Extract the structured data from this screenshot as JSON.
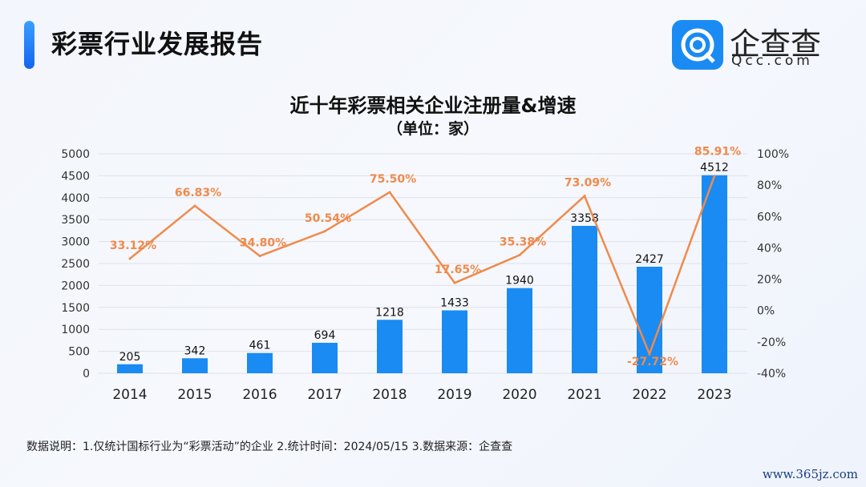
{
  "header": {
    "title": "彩票行业发展报告",
    "logo_text": "企查查",
    "logo_sub": "Qcc.com"
  },
  "footer": {
    "note": "数据说明：1.仅统计国标行业为“彩票活动”的企业   2.统计时间：2024/05/15    3.数据来源：企查查",
    "watermark": "www.365jz.com"
  },
  "colors": {
    "bar": "#1a8bf2",
    "line": "#f08a4b"
  },
  "chart_data": {
    "type": "bar+line",
    "title": "近十年彩票相关企业注册量&增速",
    "subtitle": "（单位：家）",
    "categories": [
      "2014",
      "2015",
      "2016",
      "2017",
      "2018",
      "2019",
      "2020",
      "2021",
      "2022",
      "2023"
    ],
    "series": [
      {
        "name": "注册量",
        "type": "bar",
        "axis": "left",
        "values": [
          205,
          342,
          461,
          694,
          1218,
          1433,
          1940,
          3358,
          2427,
          4512
        ],
        "labels": [
          "205",
          "342",
          "461",
          "694",
          "1218",
          "1433",
          "1940",
          "3358",
          "2427",
          "4512"
        ]
      },
      {
        "name": "增速",
        "type": "line",
        "axis": "right",
        "values": [
          33.12,
          66.83,
          34.8,
          50.54,
          75.5,
          17.65,
          35.38,
          73.09,
          -27.72,
          85.91
        ],
        "labels": [
          "33.12%",
          "66.83%",
          "34.80%",
          "50.54%",
          "75.50%",
          "17.65%",
          "35.38%",
          "73.09%",
          "-27.72%",
          "85.91%"
        ]
      }
    ],
    "ylim_left": [
      0,
      5000
    ],
    "yticks_left": [
      "0",
      "500",
      "1000",
      "1500",
      "2000",
      "2500",
      "3000",
      "3500",
      "4000",
      "4500",
      "5000"
    ],
    "ylim_right": [
      -40,
      100
    ],
    "yticks_right": [
      "-40%",
      "-20%",
      "0%",
      "20%",
      "40%",
      "60%",
      "80%",
      "100%"
    ],
    "grid": true
  }
}
